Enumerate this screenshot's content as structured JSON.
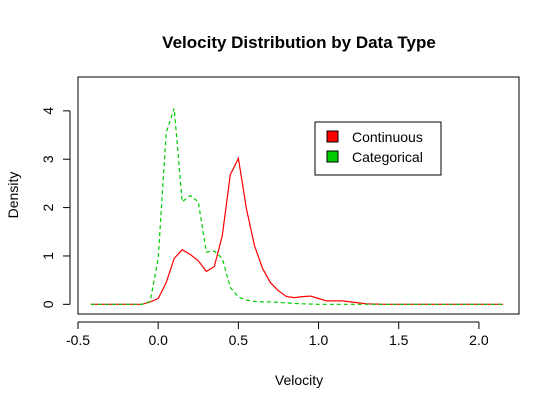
{
  "chart_data": {
    "type": "line",
    "title": "Velocity Distribution by Data Type",
    "xlabel": "Velocity",
    "ylabel": "Density",
    "xlim": [
      -0.5,
      2.25
    ],
    "ylim": [
      -0.2,
      4.7
    ],
    "xticks": [
      -0.5,
      0.0,
      0.5,
      1.0,
      1.5,
      2.0
    ],
    "xtick_labels": [
      "-0.5",
      "0.0",
      "0.5",
      "1.0",
      "1.5",
      "2.0"
    ],
    "yticks": [
      0,
      1,
      2,
      3,
      4
    ],
    "ytick_labels": [
      "0",
      "1",
      "2",
      "3",
      "4"
    ],
    "grid": false,
    "legend_position": "top-right",
    "series": [
      {
        "name": "Continuous",
        "color": "#ff0000",
        "dash": "solid",
        "x": [
          -0.42,
          -0.35,
          -0.25,
          -0.15,
          -0.1,
          -0.05,
          0.0,
          0.05,
          0.1,
          0.15,
          0.2,
          0.25,
          0.3,
          0.35,
          0.4,
          0.45,
          0.5,
          0.55,
          0.6,
          0.65,
          0.7,
          0.75,
          0.8,
          0.85,
          0.9,
          0.95,
          1.0,
          1.05,
          1.1,
          1.15,
          1.2,
          1.25,
          1.3,
          1.4,
          1.5,
          1.6,
          1.7,
          1.8,
          1.9,
          2.0,
          2.1,
          2.15
        ],
        "y": [
          0,
          0,
          0,
          0,
          0,
          0.05,
          0.12,
          0.45,
          0.95,
          1.13,
          1.03,
          0.9,
          0.68,
          0.78,
          1.42,
          2.68,
          3.02,
          1.98,
          1.22,
          0.75,
          0.45,
          0.28,
          0.16,
          0.14,
          0.16,
          0.17,
          0.12,
          0.07,
          0.07,
          0.07,
          0.05,
          0.03,
          0.01,
          0,
          0,
          0,
          0,
          0,
          0,
          0,
          0,
          0
        ]
      },
      {
        "name": "Categorical",
        "color": "#00cc00",
        "dash": "dashed",
        "x": [
          -0.42,
          -0.35,
          -0.25,
          -0.15,
          -0.1,
          -0.05,
          0.0,
          0.05,
          0.1,
          0.15,
          0.2,
          0.25,
          0.3,
          0.35,
          0.4,
          0.45,
          0.5,
          0.55,
          0.6,
          0.65,
          0.7,
          0.75,
          0.8,
          0.85,
          0.9,
          1.0,
          1.1,
          1.2,
          1.3,
          1.4,
          1.5,
          1.6,
          1.7,
          1.8,
          1.9,
          2.0,
          2.1,
          2.15
        ],
        "y": [
          0,
          0,
          0,
          0,
          0,
          0.06,
          0.95,
          3.55,
          4.05,
          2.12,
          2.25,
          2.12,
          1.08,
          1.1,
          0.95,
          0.35,
          0.15,
          0.09,
          0.06,
          0.05,
          0.05,
          0.04,
          0.03,
          0.02,
          0.01,
          0,
          0,
          0,
          0,
          0,
          0,
          0,
          0,
          0,
          0,
          0,
          0,
          0
        ]
      }
    ]
  }
}
